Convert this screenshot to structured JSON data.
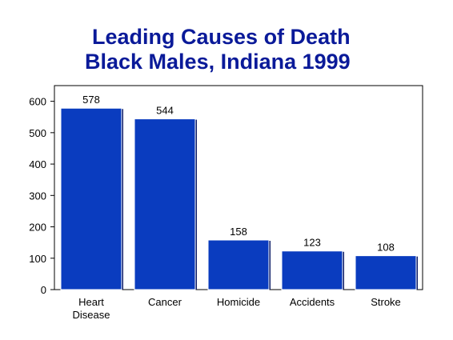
{
  "chart_data": {
    "type": "bar",
    "title": [
      "Leading Causes of Death",
      "Black Males,  Indiana 1999"
    ],
    "categories": [
      [
        "Heart",
        "Disease"
      ],
      [
        "Cancer"
      ],
      [
        "Homicide"
      ],
      [
        "Accidents"
      ],
      [
        "Stroke"
      ]
    ],
    "values": [
      578,
      544,
      158,
      123,
      108
    ],
    "data_labels": [
      "578",
      "544",
      "158",
      "123",
      "108"
    ],
    "xlabel": "",
    "ylabel": "",
    "ylim": [
      0,
      650
    ],
    "yticks": [
      0,
      100,
      200,
      300,
      400,
      500,
      600
    ],
    "grid": false,
    "legend": "none",
    "colors": {
      "bar": "#0a3cbf",
      "title": "#0a1a99",
      "bar_edge": "#0a1a66"
    }
  }
}
